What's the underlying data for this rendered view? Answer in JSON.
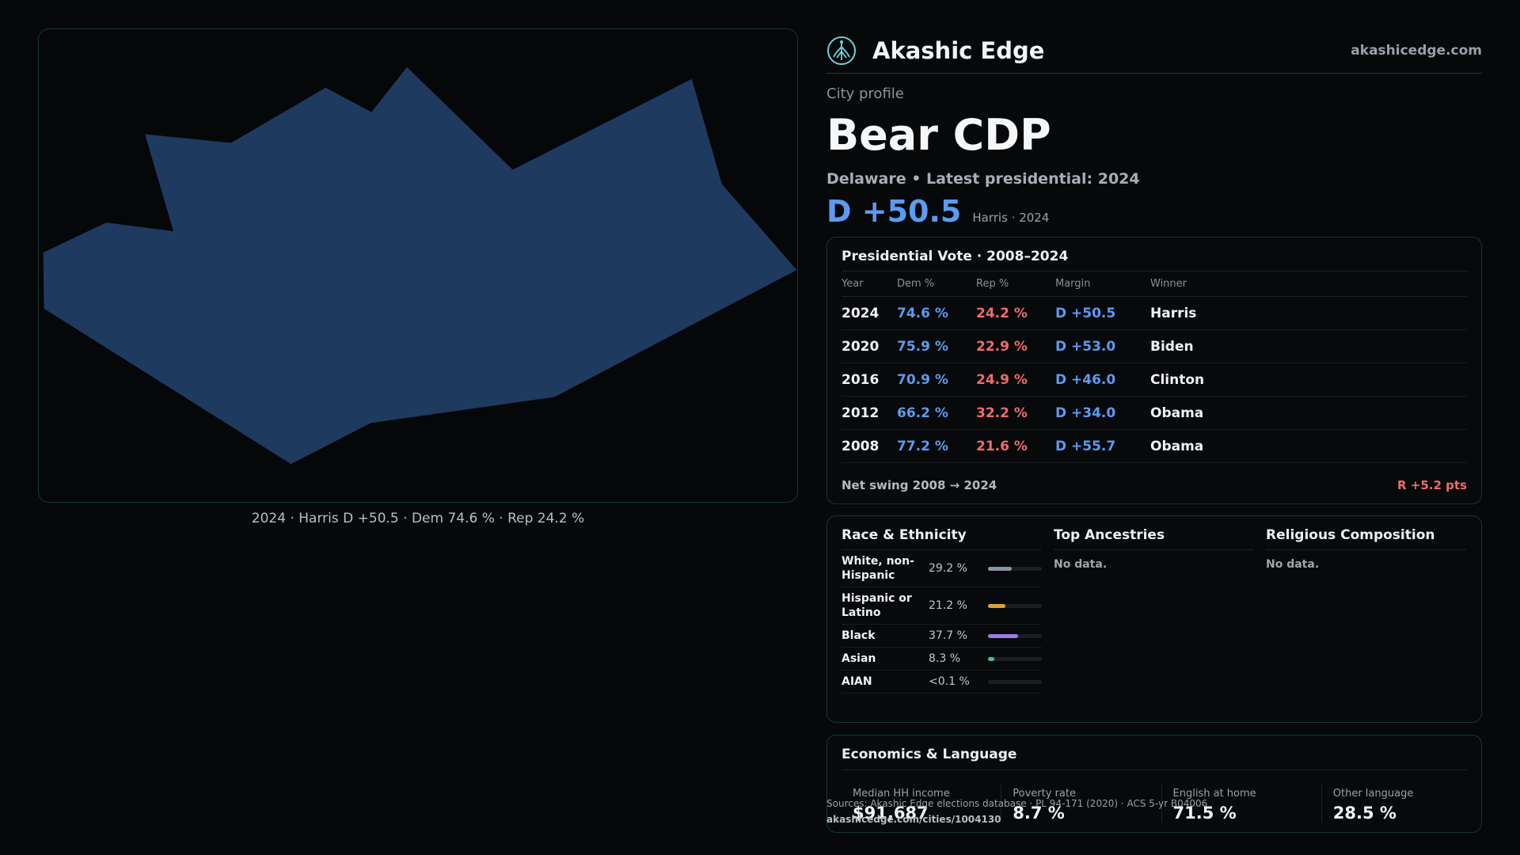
{
  "map": {
    "caption": "2024 · Harris D +50.5 · Dem 74.6 % · Rep 24.2 %",
    "fill_color": "#1e3a5f"
  },
  "brand": {
    "name": "Akashic Edge",
    "url": "akashicedge.com",
    "logo_icon": "tree-logo-icon"
  },
  "profile": {
    "eyebrow": "City profile",
    "name": "Bear CDP",
    "subline": "Delaware • Latest presidential: 2024",
    "margin": "D +50.5",
    "margin_note": "Harris · 2024"
  },
  "presidential": {
    "title": "Presidential Vote · 2008–2024",
    "headers": [
      "Year",
      "Dem %",
      "Rep %",
      "Margin",
      "Winner"
    ],
    "rows": [
      {
        "year": "2024",
        "dem": "74.6 %",
        "rep": "24.2 %",
        "margin": "D +50.5",
        "winner": "Harris"
      },
      {
        "year": "2020",
        "dem": "75.9 %",
        "rep": "22.9 %",
        "margin": "D +53.0",
        "winner": "Biden"
      },
      {
        "year": "2016",
        "dem": "70.9 %",
        "rep": "24.9 %",
        "margin": "D +46.0",
        "winner": "Clinton"
      },
      {
        "year": "2012",
        "dem": "66.2 %",
        "rep": "32.2 %",
        "margin": "D +34.0",
        "winner": "Obama"
      },
      {
        "year": "2008",
        "dem": "77.2 %",
        "rep": "21.6 %",
        "margin": "D +55.7",
        "winner": "Obama"
      }
    ],
    "swing_label": "Net swing 2008 → 2024",
    "swing_value": "R +5.2 pts"
  },
  "race": {
    "title": "Race & Ethnicity",
    "rows": [
      {
        "label": "White, non-Hispanic",
        "value": "29.2 %",
        "pct": 29.2,
        "color": "#8a94a6"
      },
      {
        "label": "Hispanic or Latino",
        "value": "21.2 %",
        "pct": 21.2,
        "color": "#e0a030"
      },
      {
        "label": "Black",
        "value": "37.7 %",
        "pct": 37.7,
        "color": "#9b7ee0"
      },
      {
        "label": "Asian",
        "value": "8.3 %",
        "pct": 8.3,
        "color": "#3fc48a"
      },
      {
        "label": "AIAN",
        "value": "<0.1 %",
        "pct": 0.05,
        "color": "#5aa0e0"
      }
    ]
  },
  "ancestries": {
    "title": "Top Ancestries",
    "empty": "No data."
  },
  "religion": {
    "title": "Religious Composition",
    "empty": "No data."
  },
  "economics": {
    "title": "Economics & Language",
    "items": [
      {
        "label": "Median HH income",
        "value": "$91,687"
      },
      {
        "label": "Poverty rate",
        "value": "8.7 %"
      },
      {
        "label": "English at home",
        "value": "71.5 %"
      },
      {
        "label": "Other language",
        "value": "28.5 %"
      }
    ]
  },
  "footer": {
    "source": "Sources: Akashic Edge elections database · PL 94-171 (2020) · ACS 5-yr B04006",
    "url": "akashicedge.com/cities/1004130"
  }
}
